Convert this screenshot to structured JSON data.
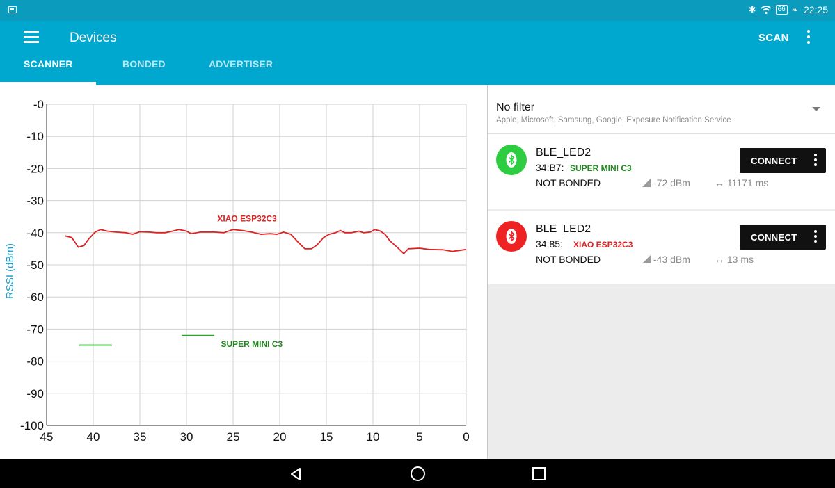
{
  "status_bar": {
    "battery": "66",
    "time": "22:25",
    "icons": [
      "screen-icon",
      "bluetooth-icon",
      "wifi-icon",
      "battery-icon",
      "leaf-icon"
    ]
  },
  "app_bar": {
    "title": "Devices",
    "scan_label": "SCAN",
    "menu_icon": "hamburger-menu-icon",
    "overflow_icon": "overflow-menu-icon"
  },
  "tabs": [
    {
      "label": "SCANNER",
      "active": true
    },
    {
      "label": "BONDED",
      "active": false
    },
    {
      "label": "ADVERTISER",
      "active": false
    }
  ],
  "chart_data": {
    "type": "line",
    "ylabel": "RSSI (dBm)",
    "xlabel": "",
    "xlim": [
      45,
      0
    ],
    "ylim": [
      -100,
      0
    ],
    "x_ticks": [
      45,
      40,
      35,
      30,
      25,
      20,
      15,
      10,
      5,
      0
    ],
    "y_ticks": [
      0,
      -10,
      -20,
      -30,
      -40,
      -50,
      -60,
      -70,
      -80,
      -90,
      -100
    ],
    "y_tick_labels": [
      "-0",
      "-10",
      "-20",
      "-30",
      "-40",
      "-50",
      "-60",
      "-70",
      "-80",
      "-90",
      "-100"
    ],
    "grid": true,
    "series": [
      {
        "name": "XIAO ESP32C3",
        "color": "#dd2222",
        "points": [
          [
            43,
            -41
          ],
          [
            42.3,
            -41.5
          ],
          [
            41.6,
            -44.5
          ],
          [
            41,
            -44
          ],
          [
            40.5,
            -42
          ],
          [
            39.8,
            -39.8
          ],
          [
            39.2,
            -39
          ],
          [
            38.5,
            -39.5
          ],
          [
            37.5,
            -39.8
          ],
          [
            36.5,
            -40
          ],
          [
            35.8,
            -40.5
          ],
          [
            35,
            -39.7
          ],
          [
            34,
            -39.8
          ],
          [
            33.2,
            -40
          ],
          [
            32.3,
            -40
          ],
          [
            31.5,
            -39.5
          ],
          [
            30.8,
            -39
          ],
          [
            30,
            -39.5
          ],
          [
            29.5,
            -40.3
          ],
          [
            28.5,
            -39.8
          ],
          [
            27,
            -39.8
          ],
          [
            26,
            -40
          ],
          [
            25,
            -39
          ],
          [
            24,
            -39.3
          ],
          [
            23,
            -39.8
          ],
          [
            22,
            -40.5
          ],
          [
            21,
            -40.3
          ],
          [
            20.3,
            -40.5
          ],
          [
            19.6,
            -39.8
          ],
          [
            18.8,
            -40.5
          ],
          [
            18,
            -43
          ],
          [
            17.3,
            -45
          ],
          [
            16.6,
            -45
          ],
          [
            16,
            -43.8
          ],
          [
            15.3,
            -41.5
          ],
          [
            14.7,
            -40.5
          ],
          [
            14,
            -40
          ],
          [
            13.5,
            -39.3
          ],
          [
            13,
            -40
          ],
          [
            12.3,
            -40
          ],
          [
            11.5,
            -39.5
          ],
          [
            11,
            -40
          ],
          [
            10.3,
            -39.8
          ],
          [
            9.8,
            -39
          ],
          [
            9.2,
            -39.5
          ],
          [
            8.7,
            -40.5
          ],
          [
            8.2,
            -42.5
          ],
          [
            7.4,
            -44.5
          ],
          [
            6.7,
            -46.5
          ],
          [
            6.2,
            -45
          ],
          [
            5,
            -44.8
          ],
          [
            4,
            -45.2
          ],
          [
            2.5,
            -45.3
          ],
          [
            1.5,
            -45.8
          ],
          [
            0.7,
            -45.5
          ],
          [
            0,
            -45.2
          ]
        ]
      },
      {
        "name": "SUPER MINI C3",
        "color": "#22aa22",
        "segments": [
          [
            [
              41.5,
              -75
            ],
            [
              38,
              -75
            ]
          ],
          [
            [
              30.5,
              -72
            ],
            [
              27,
              -72
            ]
          ]
        ]
      }
    ],
    "annotations": [
      {
        "text": "XIAO ESP32C3",
        "x": 23.5,
        "y": -36.5,
        "color": "#dd2222"
      },
      {
        "text": "SUPER MINI C3",
        "x": 23,
        "y": -75.5,
        "color": "#228822"
      }
    ]
  },
  "filter": {
    "title": "No filter",
    "subtitle": "Apple, Microsoft, Samsung, Google, Exposure Notification Service"
  },
  "devices": [
    {
      "name": "BLE_LED2",
      "address": "34:B7:",
      "annotation": "SUPER MINI C3",
      "annotation_color": "#228822",
      "icon_color": "#2ecc40",
      "bond": "NOT BONDED",
      "rssi": "-72 dBm",
      "interval": "11171 ms",
      "connect_label": "CONNECT"
    },
    {
      "name": "BLE_LED2",
      "address": "34:85:",
      "annotation": "XIAO ESP32C3",
      "annotation_color": "#dd2222",
      "icon_color": "#ee2222",
      "bond": "NOT BONDED",
      "rssi": "-43 dBm",
      "interval": "13 ms",
      "connect_label": "CONNECT"
    }
  ],
  "nav_bar": {
    "icons": [
      "back-icon",
      "home-icon",
      "recents-icon"
    ]
  }
}
